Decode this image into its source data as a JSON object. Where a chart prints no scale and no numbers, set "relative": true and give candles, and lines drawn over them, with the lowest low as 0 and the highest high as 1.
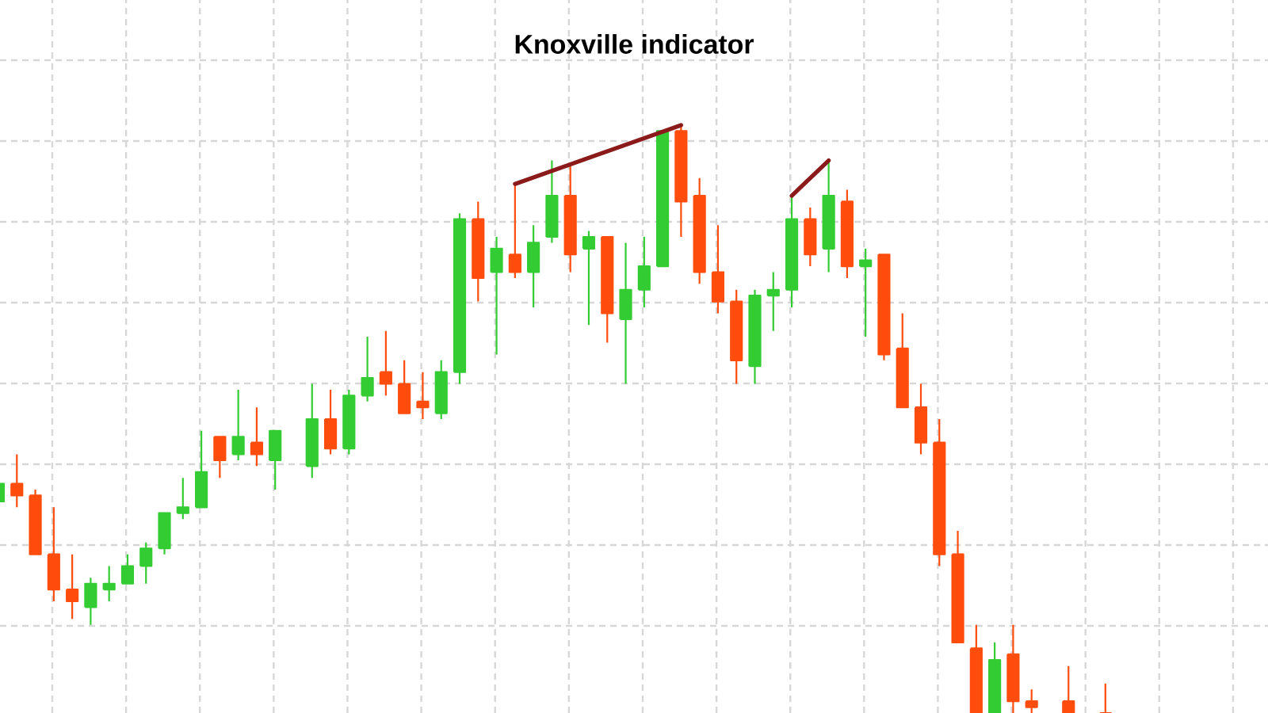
{
  "chart_data": {
    "type": "candlestick",
    "title": "Knoxville indicator",
    "relative": true,
    "grid": true,
    "categories": [
      null,
      null,
      null,
      null,
      null,
      null,
      null,
      null,
      null,
      null,
      null,
      null,
      null,
      null,
      null,
      null,
      null,
      null,
      null,
      null,
      null,
      null,
      null,
      null,
      null,
      null,
      null,
      null,
      null,
      null,
      null,
      null,
      null,
      null,
      null,
      null,
      null,
      null,
      null,
      null,
      null,
      null,
      null,
      null,
      null,
      null,
      null,
      null,
      null,
      null,
      null,
      null,
      null,
      null,
      null,
      null,
      null,
      null,
      null,
      null,
      null
    ],
    "ohlc": [
      [
        0.36,
        0.4,
        0.36,
        0.39
      ],
      [
        0.39,
        0.44,
        0.35,
        0.37
      ],
      [
        0.37,
        0.38,
        0.27,
        0.27
      ],
      [
        0.27,
        0.35,
        0.19,
        0.21
      ],
      [
        0.21,
        0.27,
        0.16,
        0.19
      ],
      [
        0.18,
        0.23,
        0.15,
        0.22
      ],
      [
        0.21,
        0.25,
        0.19,
        0.22
      ],
      [
        0.22,
        0.27,
        0.22,
        0.25
      ],
      [
        0.25,
        0.29,
        0.22,
        0.28
      ],
      [
        0.28,
        0.34,
        0.27,
        0.34
      ],
      [
        0.34,
        0.4,
        0.33,
        0.35
      ],
      [
        0.35,
        0.48,
        0.35,
        0.41
      ],
      [
        0.47,
        0.47,
        0.4,
        0.43
      ],
      [
        0.44,
        0.55,
        0.43,
        0.47
      ],
      [
        0.46,
        0.52,
        0.42,
        0.44
      ],
      [
        0.43,
        0.48,
        0.38,
        0.48
      ],
      null,
      [
        0.42,
        0.56,
        0.4,
        0.5
      ],
      [
        0.5,
        0.55,
        0.44,
        0.45
      ],
      [
        0.45,
        0.55,
        0.44,
        0.54
      ],
      [
        0.54,
        0.64,
        0.53,
        0.57
      ],
      [
        0.58,
        0.65,
        0.54,
        0.56
      ],
      [
        0.56,
        0.6,
        0.51,
        0.51
      ],
      [
        0.53,
        0.58,
        0.5,
        0.52
      ],
      [
        0.51,
        0.6,
        0.5,
        0.58
      ],
      [
        0.58,
        0.85,
        0.56,
        0.84
      ],
      [
        0.84,
        0.87,
        0.7,
        0.74
      ],
      [
        0.75,
        0.81,
        0.61,
        0.79
      ],
      [
        0.78,
        0.9,
        0.74,
        0.75
      ],
      [
        0.75,
        0.83,
        0.69,
        0.8
      ],
      [
        0.81,
        0.94,
        0.8,
        0.88
      ],
      [
        0.88,
        0.93,
        0.75,
        0.78
      ],
      [
        0.79,
        0.82,
        0.66,
        0.81
      ],
      [
        0.81,
        0.81,
        0.63,
        0.68
      ],
      [
        0.67,
        0.8,
        0.56,
        0.72
      ],
      [
        0.72,
        0.81,
        0.69,
        0.76
      ],
      [
        0.76,
        0.99,
        0.76,
        0.99
      ],
      [
        0.99,
        1,
        0.81,
        0.87
      ],
      [
        0.88,
        0.91,
        0.73,
        0.75
      ],
      [
        0.75,
        0.83,
        0.68,
        0.7
      ],
      [
        0.7,
        0.72,
        0.56,
        0.6
      ],
      [
        0.59,
        0.72,
        0.56,
        0.71
      ],
      [
        0.71,
        0.75,
        0.65,
        0.72
      ],
      [
        0.72,
        0.88,
        0.69,
        0.84
      ],
      [
        0.84,
        0.86,
        0.76,
        0.78
      ],
      [
        0.79,
        0.94,
        0.75,
        0.88
      ],
      [
        0.87,
        0.89,
        0.74,
        0.76
      ],
      [
        0.76,
        0.79,
        0.64,
        0.77
      ],
      [
        0.78,
        0.78,
        0.6,
        0.61
      ],
      [
        0.62,
        0.68,
        0.52,
        0.52
      ],
      [
        0.52,
        0.56,
        0.44,
        0.46
      ],
      [
        0.46,
        0.5,
        0.25,
        0.27
      ],
      [
        0.27,
        0.31,
        0.12,
        0.12
      ],
      [
        0.11,
        0.15,
        0,
        0
      ],
      [
        0,
        0.12,
        0,
        0.09
      ],
      [
        0.1,
        0.15,
        0,
        0.02
      ],
      [
        0.02,
        0.04,
        0,
        0.01
      ],
      null,
      [
        0.02,
        0.08,
        0,
        0
      ],
      null,
      [
        0,
        0.05,
        0,
        0
      ]
    ],
    "colors": [
      "#33cc33",
      "#ff4d0d",
      "#ff4d0d",
      "#ff4d0d",
      "#ff4d0d",
      "#33cc33",
      "#33cc33",
      "#33cc33",
      "#33cc33",
      "#33cc33",
      "#33cc33",
      "#33cc33",
      "#ff4d0d",
      "#33cc33",
      "#ff4d0d",
      "#33cc33",
      null,
      "#33cc33",
      "#ff4d0d",
      "#33cc33",
      "#33cc33",
      "#ff4d0d",
      "#ff4d0d",
      "#ff4d0d",
      "#33cc33",
      "#33cc33",
      "#ff4d0d",
      "#33cc33",
      "#ff4d0d",
      "#33cc33",
      "#33cc33",
      "#ff4d0d",
      "#33cc33",
      "#ff4d0d",
      "#33cc33",
      "#33cc33",
      "#33cc33",
      "#ff4d0d",
      "#ff4d0d",
      "#ff4d0d",
      "#ff4d0d",
      "#33cc33",
      "#33cc33",
      "#33cc33",
      "#ff4d0d",
      "#33cc33",
      "#ff4d0d",
      "#33cc33",
      "#ff4d0d",
      "#ff4d0d",
      "#ff4d0d",
      "#ff4d0d",
      "#ff4d0d",
      "#ff4d0d",
      "#33cc33",
      "#ff4d0d",
      "#ff4d0d",
      null,
      "#ff4d0d",
      null,
      "#ff4d0d"
    ],
    "series": [
      {
        "type": "line",
        "color": "#8b1a1a",
        "values": [
          null,
          null,
          null,
          null,
          null,
          null,
          null,
          null,
          null,
          null,
          null,
          null,
          null,
          null,
          null,
          null,
          null,
          null,
          null,
          null,
          null,
          null,
          null,
          null,
          null,
          null,
          null,
          null,
          0.9,
          null,
          null,
          null,
          null,
          null,
          null,
          null,
          null,
          1,
          null,
          null,
          null,
          null,
          null,
          null,
          null,
          null,
          null,
          null,
          null,
          null,
          null,
          null,
          null,
          null,
          null,
          null,
          null,
          null,
          null,
          null,
          null
        ]
      },
      {
        "type": "line",
        "color": "#8b1a1a",
        "values": [
          null,
          null,
          null,
          null,
          null,
          null,
          null,
          null,
          null,
          null,
          null,
          null,
          null,
          null,
          null,
          null,
          null,
          null,
          null,
          null,
          null,
          null,
          null,
          null,
          null,
          null,
          null,
          null,
          null,
          null,
          null,
          null,
          null,
          null,
          null,
          null,
          null,
          null,
          null,
          null,
          null,
          null,
          null,
          0.88,
          null,
          0.94,
          null,
          null,
          null,
          null,
          null,
          null,
          null,
          null,
          null,
          null,
          null,
          null,
          null,
          null,
          null
        ]
      }
    ]
  }
}
